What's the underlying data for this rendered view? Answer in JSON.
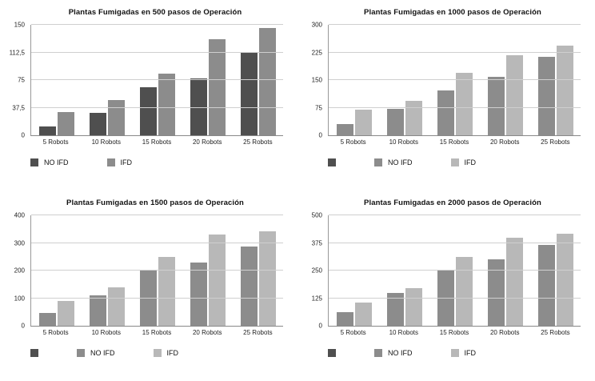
{
  "charts": [
    {
      "title": "Plantas Fumigadas en 500 pasos de Operación",
      "chart_data": {
        "type": "bar",
        "categories": [
          "5 Robots",
          "10 Robots",
          "15 Robots",
          "20 Robots",
          "25 Robots"
        ],
        "series": [
          {
            "name": "NO IFD",
            "color": "#4f4f4f",
            "values": [
              12,
              30,
              65,
              77,
              113
            ]
          },
          {
            "name": "IFD",
            "color": "#8c8c8c",
            "values": [
              32,
              48,
              84,
              130,
              146
            ]
          }
        ],
        "ylim": [
          0,
          150
        ],
        "yticks": [
          0,
          37.5,
          75,
          112.5,
          150
        ],
        "ytick_labels": [
          "0",
          "37,5",
          "75",
          "112,5",
          "150"
        ],
        "grid": true,
        "legend_position": "bottom"
      },
      "legend": [
        {
          "label": "NO IFD",
          "color": "#4f4f4f"
        },
        {
          "label": "IFD",
          "color": "#8c8c8c"
        }
      ]
    },
    {
      "title": "Plantas Fumigadas en 1000 pasos de Operación",
      "chart_data": {
        "type": "bar",
        "categories": [
          "5 Robots",
          "10 Robots",
          "15 Robots",
          "20 Robots",
          "25 Robots"
        ],
        "series": [
          {
            "name": "NO IFD",
            "color": "#8c8c8c",
            "values": [
              30,
              72,
              122,
              158,
              214
            ]
          },
          {
            "name": "IFD",
            "color": "#b8b8b8",
            "values": [
              70,
              93,
              170,
              218,
              243
            ]
          }
        ],
        "ylim": [
          0,
          300
        ],
        "yticks": [
          0,
          75,
          150,
          225,
          300
        ],
        "ytick_labels": [
          "0",
          "75",
          "150",
          "225",
          "300"
        ],
        "grid": true,
        "legend_position": "bottom"
      },
      "legend": [
        {
          "label": "",
          "color": "#4f4f4f"
        },
        {
          "label": "NO IFD",
          "color": "#8c8c8c"
        },
        {
          "label": "IFD",
          "color": "#b8b8b8"
        }
      ]
    },
    {
      "title": "Plantas Fumigadas en 1500 pasos de Operación",
      "chart_data": {
        "type": "bar",
        "categories": [
          "5 Robots",
          "10 Robots",
          "15 Robots",
          "20 Robots",
          "25 Robots"
        ],
        "series": [
          {
            "name": "NO IFD",
            "color": "#8c8c8c",
            "values": [
              45,
              110,
              200,
              230,
              288
            ]
          },
          {
            "name": "IFD",
            "color": "#b8b8b8",
            "values": [
              90,
              140,
              248,
              330,
              343
            ]
          }
        ],
        "ylim": [
          0,
          400
        ],
        "yticks": [
          0,
          100,
          200,
          300,
          400
        ],
        "ytick_labels": [
          "0",
          "100",
          "200",
          "300",
          "400"
        ],
        "grid": true,
        "legend_position": "bottom"
      },
      "legend": [
        {
          "label": "",
          "color": "#4f4f4f"
        },
        {
          "label": "NO IFD",
          "color": "#8c8c8c"
        },
        {
          "label": "IFD",
          "color": "#b8b8b8"
        }
      ]
    },
    {
      "title": "Plantas Fumigadas en 2000 pasos de Operación",
      "chart_data": {
        "type": "bar",
        "categories": [
          "5 Robots",
          "10 Robots",
          "15 Robots",
          "20 Robots",
          "25 Robots"
        ],
        "series": [
          {
            "name": "NO IFD",
            "color": "#8c8c8c",
            "values": [
              60,
              150,
              250,
              300,
              365
            ]
          },
          {
            "name": "IFD",
            "color": "#b8b8b8",
            "values": [
              105,
              172,
              310,
              400,
              418
            ]
          }
        ],
        "ylim": [
          0,
          500
        ],
        "yticks": [
          0,
          125,
          250,
          375,
          500
        ],
        "ytick_labels": [
          "0",
          "125",
          "250",
          "375",
          "500"
        ],
        "grid": true,
        "legend_position": "bottom"
      },
      "legend": [
        {
          "label": "",
          "color": "#4f4f4f"
        },
        {
          "label": "NO IFD",
          "color": "#8c8c8c"
        },
        {
          "label": "IFD",
          "color": "#b8b8b8"
        }
      ]
    }
  ]
}
